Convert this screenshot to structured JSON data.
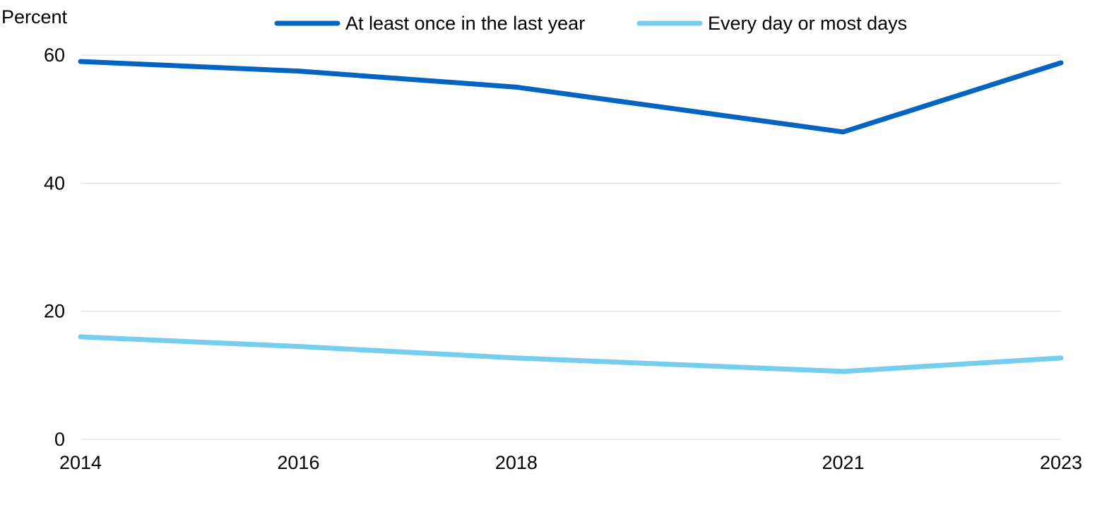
{
  "chart_data": {
    "type": "line",
    "title": "",
    "ylabel": "Percent",
    "xlabel": "",
    "x": [
      "2014",
      "2016",
      "2018",
      "2021",
      "2023"
    ],
    "x_numeric": [
      2014,
      2016,
      2018,
      2021,
      2023
    ],
    "ylim": [
      0,
      60
    ],
    "yticks": [
      0,
      20,
      40,
      60
    ],
    "grid": true,
    "legend_position": "top",
    "series": [
      {
        "name": "At least once in the last year",
        "color": "#0563c1",
        "values": [
          59,
          57.5,
          55,
          48,
          58.8
        ]
      },
      {
        "name": "Every day or most days",
        "color": "#75cdf0",
        "values": [
          16,
          14.5,
          12.7,
          10.6,
          12.7
        ]
      }
    ]
  }
}
